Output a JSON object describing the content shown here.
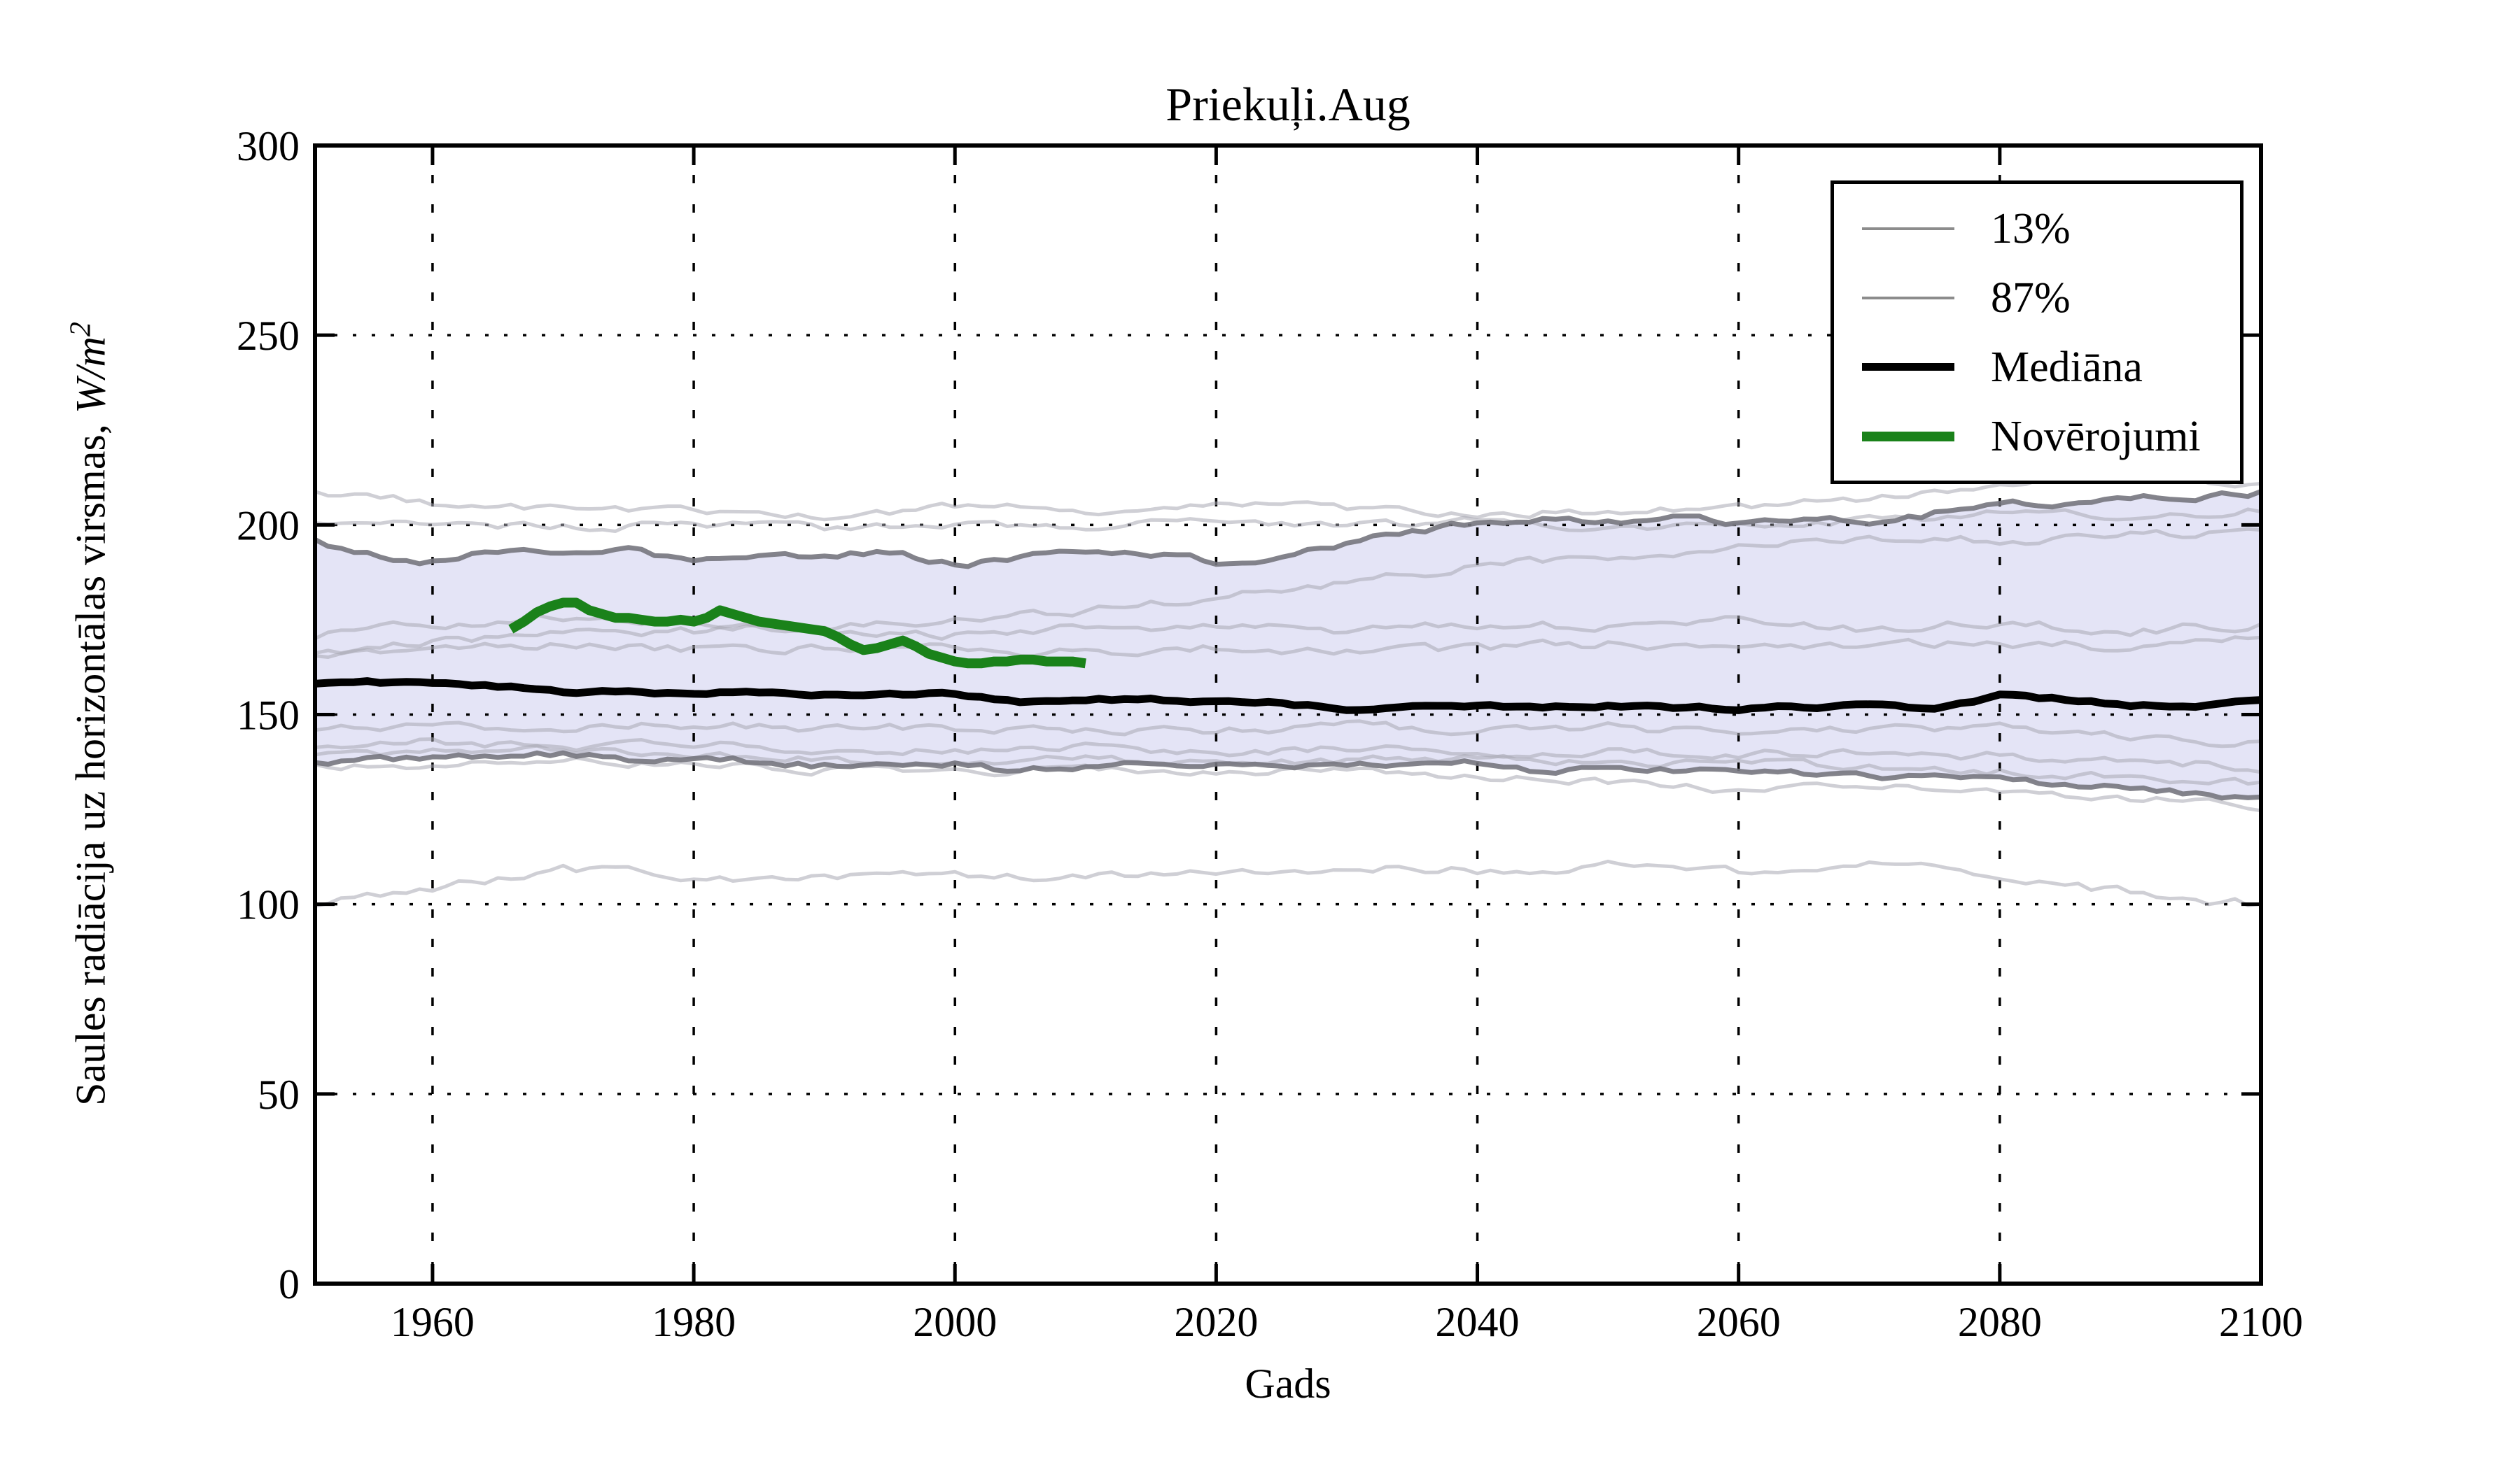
{
  "window": {
    "title": "Priekuļi.Aug"
  },
  "chart_data": {
    "type": "line",
    "title": "Priekuļi.Aug",
    "xlabel": "Gads",
    "ylabel": "Saules radiācija uz horizontālas virsmas, W/m2",
    "ylabel_prefix": "Saules radiācija uz horizontālas virsmas, ",
    "ylabel_math_base": "W/m",
    "ylabel_math_exponent": "2",
    "xlim": [
      1951,
      2100
    ],
    "ylim": [
      0,
      300
    ],
    "xticks": [
      "1960",
      "1980",
      "2000",
      "2020",
      "2040",
      "2060",
      "2080",
      "2100"
    ],
    "xtick_values": [
      1960,
      1980,
      2000,
      2020,
      2040,
      2060,
      2080,
      2100
    ],
    "yticks": [
      "0",
      "50",
      "100",
      "150",
      "200",
      "250",
      "300"
    ],
    "ytick_values": [
      0,
      50,
      100,
      150,
      200,
      250,
      300
    ],
    "grid": true,
    "grid_style": "dotted",
    "legend_position": "upper right",
    "colors": {
      "background": "#ffffff",
      "band_fill": "#e4e4f6",
      "band_edge": "#76767e",
      "ensemble": "#a7a7b3",
      "median": "#000000",
      "observations": "#1a821a",
      "grid": "#000000",
      "frame": "#000000"
    },
    "years5": [
      1951,
      1955,
      1960,
      1965,
      1970,
      1975,
      1980,
      1985,
      1990,
      1995,
      2000,
      2005,
      2010,
      2015,
      2020,
      2025,
      2030,
      2035,
      2040,
      2045,
      2050,
      2055,
      2060,
      2065,
      2070,
      2075,
      2080,
      2085,
      2090,
      2095,
      2100
    ],
    "years10": [
      1951,
      1960,
      1970,
      1980,
      1990,
      2000,
      2010,
      2020,
      2030,
      2040,
      2050,
      2060,
      2070,
      2080,
      2090,
      2100
    ],
    "series": [
      {
        "name": "87%",
        "role": "percentile_upper",
        "x_key": "years5",
        "noise": 0.9,
        "width": 7,
        "y": [
          195.5,
          192.5,
          190.5,
          193.5,
          192.5,
          193.5,
          190.5,
          192.5,
          191.5,
          193,
          189.5,
          191,
          193,
          192.5,
          190,
          191.5,
          194.5,
          198.5,
          200.5,
          201.5,
          200.5,
          201.5,
          200.5,
          202,
          200.5,
          203,
          205.5,
          206,
          207,
          207.5,
          208.5
        ]
      },
      {
        "name": "13%",
        "role": "percentile_lower",
        "x_key": "years5",
        "noise": 0.9,
        "width": 7,
        "y": [
          137,
          138,
          138.5,
          139.5,
          140,
          138.5,
          139,
          137.5,
          136.5,
          136,
          136.5,
          135,
          136.5,
          137,
          136.5,
          136,
          137,
          136,
          137.5,
          135.5,
          136,
          135,
          136,
          134.5,
          134,
          133.5,
          132.5,
          131.5,
          131,
          129.5,
          128
        ]
      },
      {
        "name": "Mediāna",
        "role": "median",
        "x_key": "years5",
        "noise": 0.4,
        "width": 11,
        "y": [
          158,
          158.5,
          158,
          157.5,
          156,
          156,
          155.5,
          156,
          155.5,
          155.5,
          155.5,
          153.5,
          154,
          154,
          153.5,
          153,
          151.5,
          152,
          152.5,
          152,
          152.5,
          152,
          151.5,
          152,
          152.5,
          151.5,
          155,
          154,
          152.5,
          152,
          153.5
        ]
      },
      {
        "name": "Novērojumi",
        "role": "observations",
        "x_start": 1966,
        "noise": 0,
        "width": 14,
        "y": [
          172.5,
          174.5,
          177,
          178.5,
          179.5,
          179.5,
          177.5,
          176.5,
          175.5,
          175.5,
          175,
          174.5,
          174.5,
          175,
          174.5,
          175.5,
          177.5,
          176.5,
          175.5,
          174.5,
          174,
          173.5,
          173,
          172.5,
          172,
          170.5,
          168.5,
          167,
          167.5,
          168.5,
          169.5,
          168,
          166,
          165,
          164,
          163.5,
          163.5,
          164,
          164,
          164.5,
          164.5,
          164,
          164,
          164,
          163.5
        ]
      },
      {
        "name": "ensemble-1",
        "role": "ensemble",
        "x_key": "years10",
        "noise": 1.1,
        "width": 5,
        "y": [
          208,
          206,
          204,
          203.5,
          202,
          205,
          204,
          206,
          204.5,
          203,
          204,
          205,
          207,
          211,
          212.5,
          211
        ]
      },
      {
        "name": "ensemble-2",
        "role": "ensemble",
        "x_key": "years10",
        "noise": 1.0,
        "width": 5,
        "y": [
          201,
          200,
          199.5,
          200,
          199,
          199.5,
          200,
          200.5,
          199.5,
          201,
          199,
          200.5,
          201,
          203,
          202,
          204
        ]
      },
      {
        "name": "ensemble-3",
        "role": "ensemble",
        "x_key": "years10",
        "noise": 1.1,
        "width": 5,
        "y": [
          166,
          169,
          172,
          172,
          173,
          175,
          177,
          181,
          185,
          189,
          192,
          194,
          196,
          196,
          197,
          199
        ]
      },
      {
        "name": "ensemble-4",
        "role": "ensemble",
        "x_key": "years10",
        "noise": 1.2,
        "width": 5,
        "y": [
          165,
          167,
          168.5,
          167,
          168,
          167.5,
          166,
          168,
          166,
          167,
          168.5,
          167,
          168,
          169,
          167.5,
          170
        ]
      },
      {
        "name": "ensemble-5",
        "role": "ensemble",
        "x_key": "years10",
        "noise": 1.2,
        "width": 5,
        "y": [
          171,
          174,
          176,
          174.5,
          172,
          171,
          173,
          174,
          172,
          174,
          173,
          174.5,
          172.5,
          174,
          172,
          174
        ]
      },
      {
        "name": "ensemble-6",
        "role": "ensemble",
        "x_key": "years10",
        "noise": 1.1,
        "width": 5,
        "y": [
          146,
          147,
          146.5,
          147.5,
          146,
          146.5,
          145.5,
          146,
          147,
          145.5,
          146.5,
          145,
          146,
          147,
          144,
          142
        ]
      },
      {
        "name": "ensemble-7",
        "role": "ensemble",
        "x_key": "years10",
        "noise": 1.1,
        "width": 5,
        "y": [
          142,
          143,
          141.5,
          142.5,
          141,
          140.5,
          141.5,
          140,
          141,
          139.5,
          140.5,
          139.5,
          140.5,
          139,
          138,
          136
        ]
      },
      {
        "name": "ensemble-8",
        "role": "ensemble",
        "x_key": "years10",
        "noise": 1.0,
        "width": 5,
        "y": [
          139,
          140,
          141,
          139.5,
          138,
          137.5,
          138.5,
          137.5,
          138,
          138.5,
          137,
          137.5,
          136,
          135,
          133.5,
          132
        ]
      },
      {
        "name": "ensemble-9",
        "role": "ensemble",
        "x_key": "years10",
        "noise": 1.0,
        "width": 5,
        "y": [
          136,
          137,
          138,
          137,
          135.5,
          134.5,
          136,
          135,
          135.5,
          134,
          132,
          130,
          131,
          130,
          128,
          126
        ]
      },
      {
        "name": "ensemble-10",
        "role": "ensemble",
        "x_key": "years10",
        "noise": 1.2,
        "width": 5,
        "y": [
          100,
          104,
          110,
          106,
          107,
          108,
          107,
          108.5,
          110,
          109,
          110,
          108,
          111,
          108,
          103,
          100
        ]
      }
    ]
  },
  "legend": {
    "items": [
      {
        "label": "13%",
        "color": "#8c8c8c",
        "sample_height": 4
      },
      {
        "label": "87%",
        "color": "#8c8c8c",
        "sample_height": 4
      },
      {
        "label": "Mediāna",
        "color": "#000000",
        "sample_height": 11
      },
      {
        "label": "Novērojumi",
        "color": "#1a821a",
        "sample_height": 14
      }
    ]
  }
}
